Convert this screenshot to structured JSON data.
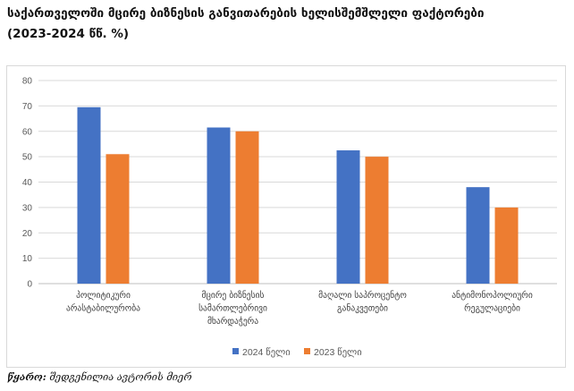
{
  "title_line1": "საქართველოში მცირე ბიზნესის განვითარების ხელისშემშლელი ფაქტორები",
  "title_line2": " (2023-2024 წწ. %)",
  "source_label": "წყარო:",
  "source_text": " შედგენილია ავტორის მიერ",
  "colors": {
    "series_2024": "#4472C4",
    "series_2023": "#ED7D31",
    "grid": "#d9d9d9",
    "axis": "#bfbfbf"
  },
  "chart_data": {
    "type": "bar",
    "categories": [
      [
        "პოლიტიკური",
        "არასტაბილურობა"
      ],
      [
        "მცირე ბიზნესის",
        "სამართლებრივი",
        "მხარდაჭერა"
      ],
      [
        "მაღალი საპროცენტო",
        "განაკვეთები"
      ],
      [
        "ანტიმონოპოლიური",
        "რეგულაციები"
      ]
    ],
    "series": [
      {
        "name": "2024 წელი",
        "values": [
          69.5,
          61.5,
          52.5,
          38
        ]
      },
      {
        "name": "2023 წელი",
        "values": [
          51,
          60,
          50,
          30
        ]
      }
    ],
    "ylim": [
      0,
      80
    ],
    "yticks": [
      0,
      10,
      20,
      30,
      40,
      50,
      60,
      70,
      80
    ],
    "grid": true,
    "legend": "bottom"
  }
}
